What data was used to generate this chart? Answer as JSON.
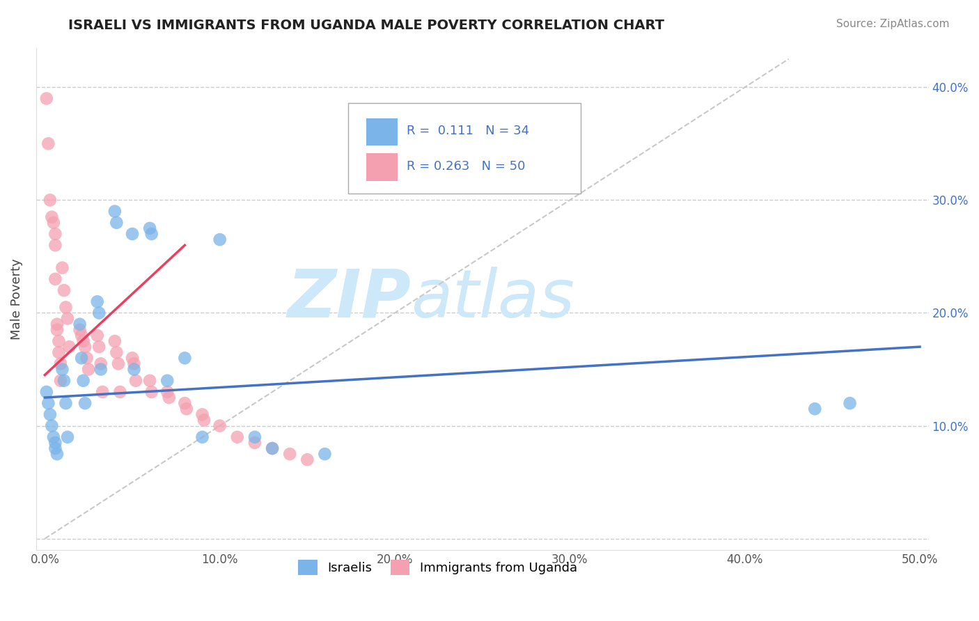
{
  "title": "ISRAELI VS IMMIGRANTS FROM UGANDA MALE POVERTY CORRELATION CHART",
  "source": "Source: ZipAtlas.com",
  "ylabel": "Male Poverty",
  "xlim": [
    -0.005,
    0.505
  ],
  "ylim": [
    -0.01,
    0.435
  ],
  "xticks": [
    0.0,
    0.1,
    0.2,
    0.3,
    0.4,
    0.5
  ],
  "yticks": [
    0.0,
    0.1,
    0.2,
    0.3,
    0.4
  ],
  "xticklabels": [
    "0.0%",
    "10.0%",
    "20.0%",
    "30.0%",
    "40.0%",
    "50.0%"
  ],
  "left_yticklabels": [
    "",
    "",
    "",
    "",
    ""
  ],
  "right_yticklabels": [
    "",
    "10.0%",
    "20.0%",
    "30.0%",
    "40.0%"
  ],
  "series1_label": "Israelis",
  "series1_color": "#7ab4e8",
  "series1_R": "0.111",
  "series1_N": "34",
  "series2_label": "Immigrants from Uganda",
  "series2_color": "#f4a0b0",
  "series2_R": "0.263",
  "series2_N": "50",
  "trendline1_color": "#4472c4",
  "trendline2_color": "#e84060",
  "watermark_zip": "ZIP",
  "watermark_atlas": "atlas",
  "watermark_color": "#cde8f8",
  "israelis_x": [
    0.001,
    0.002,
    0.003,
    0.004,
    0.005,
    0.006,
    0.006,
    0.007,
    0.01,
    0.011,
    0.012,
    0.013,
    0.02,
    0.021,
    0.022,
    0.023,
    0.03,
    0.031,
    0.032,
    0.04,
    0.041,
    0.05,
    0.051,
    0.06,
    0.061,
    0.07,
    0.08,
    0.09,
    0.1,
    0.12,
    0.13,
    0.16,
    0.44,
    0.46
  ],
  "israelis_y": [
    0.13,
    0.12,
    0.11,
    0.1,
    0.09,
    0.085,
    0.08,
    0.075,
    0.15,
    0.14,
    0.12,
    0.09,
    0.19,
    0.16,
    0.14,
    0.12,
    0.21,
    0.2,
    0.15,
    0.29,
    0.28,
    0.27,
    0.15,
    0.275,
    0.27,
    0.14,
    0.16,
    0.09,
    0.265,
    0.09,
    0.08,
    0.075,
    0.115,
    0.12
  ],
  "uganda_x": [
    0.001,
    0.002,
    0.003,
    0.004,
    0.005,
    0.006,
    0.006,
    0.006,
    0.007,
    0.007,
    0.008,
    0.008,
    0.009,
    0.009,
    0.01,
    0.011,
    0.012,
    0.013,
    0.014,
    0.02,
    0.021,
    0.022,
    0.023,
    0.024,
    0.025,
    0.03,
    0.031,
    0.032,
    0.033,
    0.04,
    0.041,
    0.042,
    0.043,
    0.05,
    0.051,
    0.052,
    0.06,
    0.061,
    0.07,
    0.071,
    0.08,
    0.081,
    0.09,
    0.091,
    0.1,
    0.11,
    0.12,
    0.13,
    0.14,
    0.15
  ],
  "uganda_y": [
    0.39,
    0.35,
    0.3,
    0.285,
    0.28,
    0.27,
    0.26,
    0.23,
    0.19,
    0.185,
    0.175,
    0.165,
    0.155,
    0.14,
    0.24,
    0.22,
    0.205,
    0.195,
    0.17,
    0.185,
    0.18,
    0.175,
    0.17,
    0.16,
    0.15,
    0.18,
    0.17,
    0.155,
    0.13,
    0.175,
    0.165,
    0.155,
    0.13,
    0.16,
    0.155,
    0.14,
    0.14,
    0.13,
    0.13,
    0.125,
    0.12,
    0.115,
    0.11,
    0.105,
    0.1,
    0.09,
    0.085,
    0.08,
    0.075,
    0.07
  ],
  "trendline1_x0": 0.0,
  "trendline1_x1": 0.5,
  "trendline1_y0": 0.125,
  "trendline1_y1": 0.17,
  "trendline2_x0": 0.0,
  "trendline2_x1": 0.08,
  "trendline2_y0": 0.145,
  "trendline2_y1": 0.26
}
